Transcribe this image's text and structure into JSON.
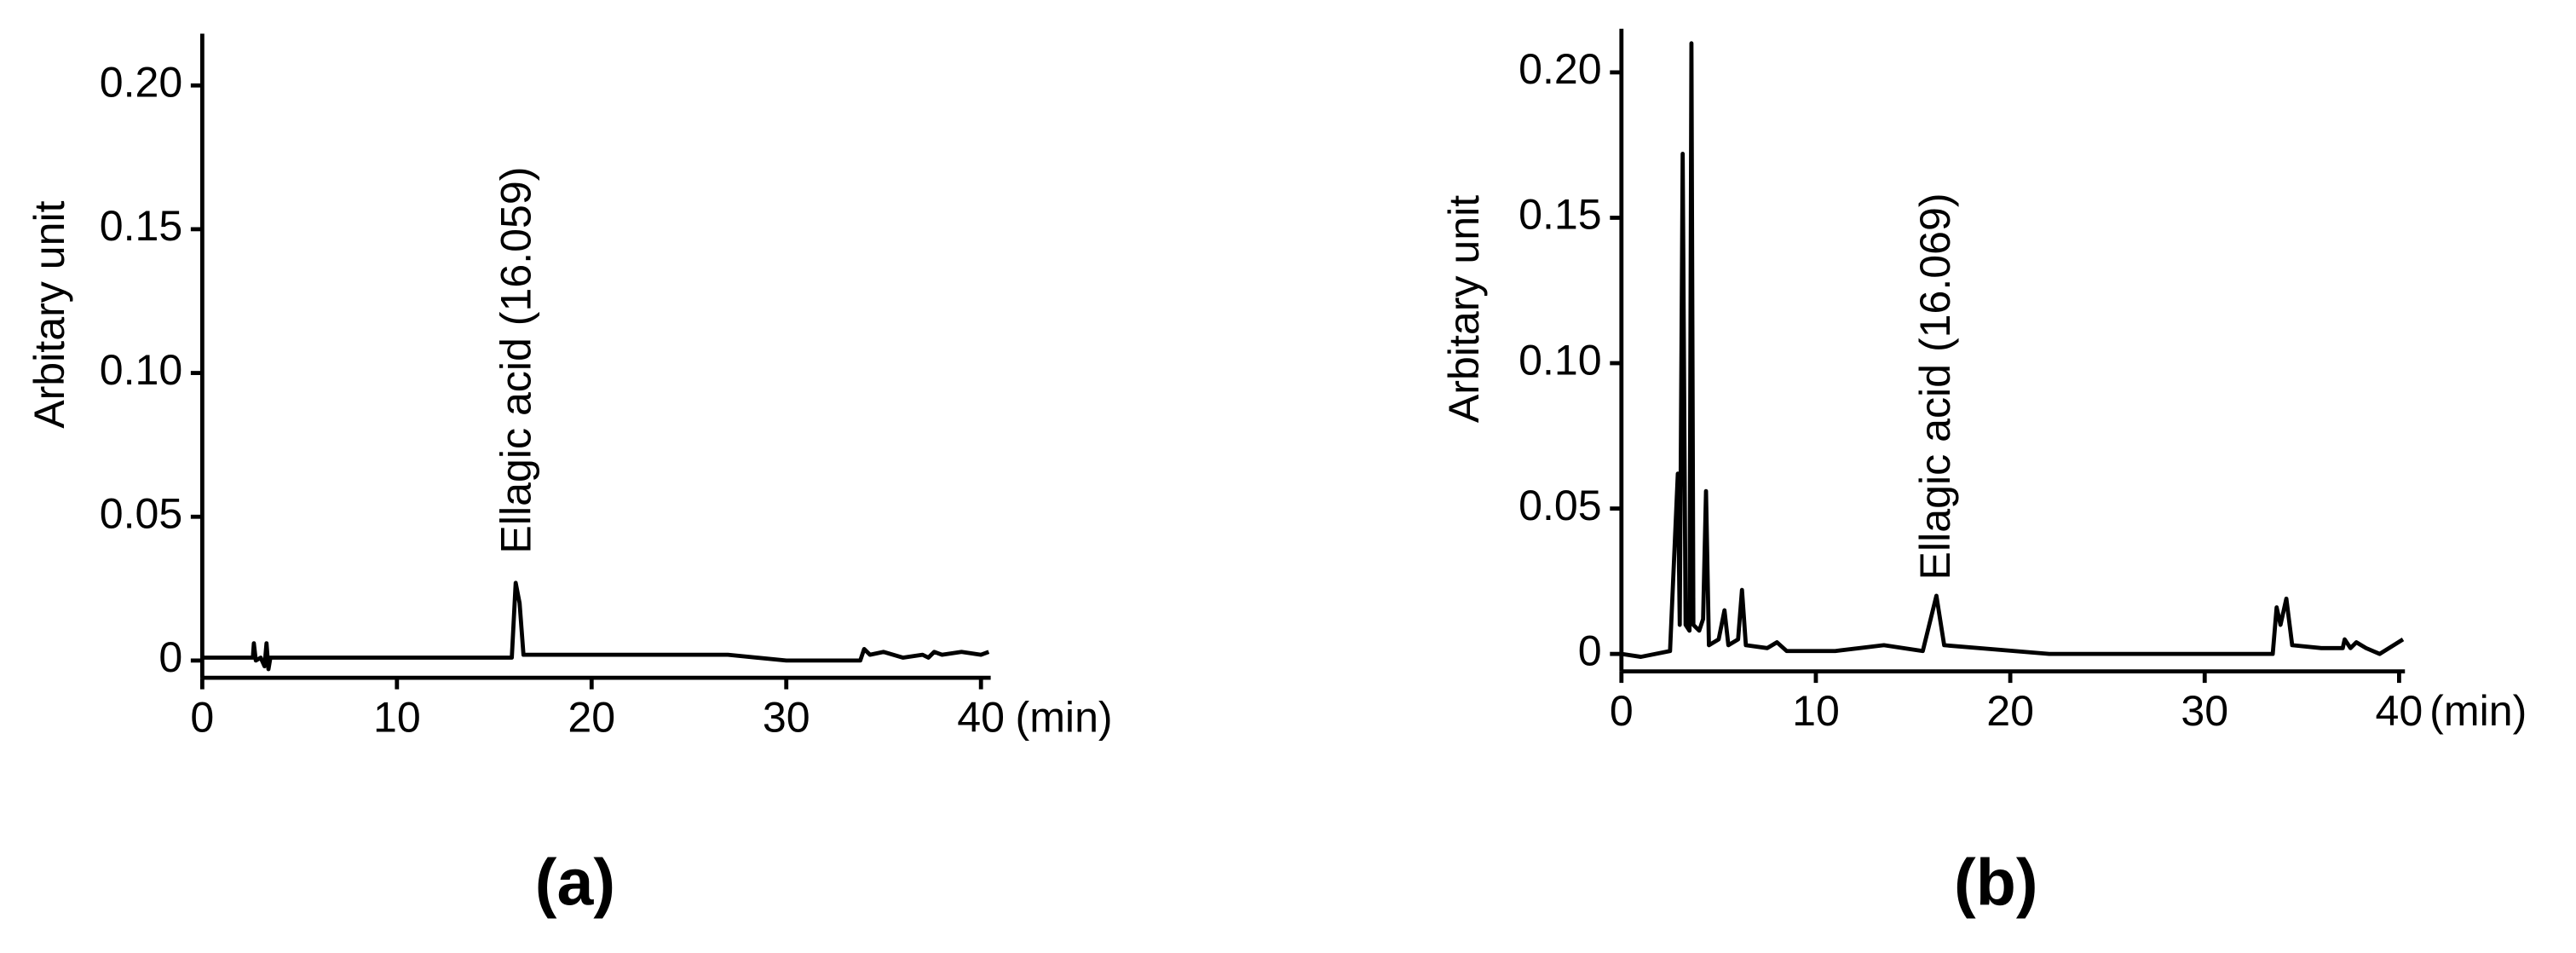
{
  "chart_data": [
    {
      "type": "line",
      "panel": "(a)",
      "ylabel": "Arbitary unit",
      "xlabel": "(min)",
      "annotation": "Ellagic acid (16.059)",
      "color": "#000000",
      "xlim": [
        0,
        40.5
      ],
      "xticks": [
        0,
        10,
        20,
        30,
        40
      ],
      "ylim": [
        -0.006,
        0.218
      ],
      "yticks": [
        0,
        0.05,
        {
          "value": 0.1,
          "label": "0.10"
        },
        0.15,
        {
          "value": 0.2,
          "label": "0.20"
        }
      ],
      "x": [
        0,
        2.6,
        2.65,
        2.75,
        3.0,
        3.2,
        3.3,
        3.4,
        3.5,
        15.9,
        16.1,
        16.3,
        16.5,
        20,
        27,
        30,
        33.8,
        34.0,
        34.3,
        35,
        36,
        37,
        37.3,
        37.6,
        38,
        39,
        40,
        40.4
      ],
      "values": [
        0.001,
        0.001,
        0.006,
        0.0,
        0.001,
        -0.002,
        0.006,
        -0.003,
        0.001,
        0.001,
        0.027,
        0.02,
        0.002,
        0.002,
        0.002,
        0.0,
        0.0,
        0.004,
        0.002,
        0.003,
        0.001,
        0.002,
        0.001,
        0.003,
        0.002,
        0.003,
        0.002,
        0.003
      ]
    },
    {
      "type": "line",
      "panel": "(b)",
      "ylabel": "Arbitary unit",
      "xlabel": "(min)",
      "annotation": "Ellagic acid (16.069)",
      "color": "#000000",
      "xlim": [
        0,
        40.3
      ],
      "xticks": [
        0,
        10,
        20,
        30,
        40
      ],
      "ylim": [
        -0.006,
        0.215
      ],
      "yticks": [
        0,
        0.05,
        {
          "value": 0.1,
          "label": "0.10"
        },
        0.15,
        {
          "value": 0.2,
          "label": "0.20"
        }
      ],
      "x": [
        0,
        1,
        2.5,
        2.9,
        3.0,
        3.15,
        3.3,
        3.5,
        3.6,
        3.7,
        4.0,
        4.2,
        4.35,
        4.5,
        5.0,
        5.3,
        5.5,
        6.0,
        6.2,
        6.4,
        7.5,
        8.0,
        8.5,
        11,
        13.5,
        15.5,
        16.2,
        16.6,
        22,
        33.5,
        33.7,
        33.9,
        34.2,
        34.5,
        36,
        37.1,
        37.2,
        37.5,
        37.8,
        38.3,
        39,
        40.2
      ],
      "values": [
        0.0,
        -0.001,
        0.001,
        0.062,
        0.01,
        0.172,
        0.01,
        0.008,
        0.21,
        0.01,
        0.008,
        0.012,
        0.056,
        0.003,
        0.005,
        0.015,
        0.003,
        0.005,
        0.022,
        0.003,
        0.002,
        0.004,
        0.001,
        0.001,
        0.003,
        0.001,
        0.02,
        0.003,
        0.0,
        0.0,
        0.016,
        0.01,
        0.019,
        0.003,
        0.002,
        0.002,
        0.005,
        0.002,
        0.004,
        0.002,
        0.0,
        0.005
      ]
    }
  ]
}
